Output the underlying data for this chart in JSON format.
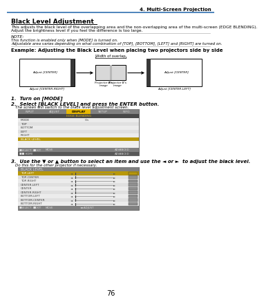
{
  "page_num": "76",
  "chapter": "4. Multi-Screen Projection",
  "title": "Black Level Adjustment",
  "body_line1": "This adjusts the black level of the overlapping area and the non-overlapping area of the multi-screen (EDGE BLENDING).",
  "body_line2": "Adjust the brightness level if you feel the difference is too large.",
  "note_label": "NOTE:",
  "note_line1": "This function is enabled only when [MODE] is turned on.",
  "note_line2": "Adjustable area varies depending on what combination of [TOP], [BOTTOM], [LEFT] and [RIGHT] are turned on.",
  "example_title": "Example: Adjusting the Black Level when placing two projectors side by side",
  "step1": "1.  Turn on [MODE]",
  "step2": "2.  Select [BLACK LEVEL] and press the ENTER button.",
  "step2b": "The screen will switch to the black level adjustment screen.",
  "step3": "3.  Use the ▼ or ▲ button to select an item and use the ◄ or ►  to adjust the black level.",
  "step3b": "Do this for the other projector if necessary.",
  "menu_tabs": [
    "INPUT",
    "ADJUST",
    "DISPLAY",
    "SETUP",
    "INFO."
  ],
  "menu_highlight": "DISPLAY",
  "menu_row2": "EDGE BLENDING",
  "menu_list": [
    "MODE",
    "TOP",
    "BOTTOM",
    "LEFT",
    "RIGHT",
    "BLACK LEVEL"
  ],
  "menu_mode_value": "On",
  "black_level_items": [
    "TOP-LEFT",
    "TOP-CENTER",
    "TOP-RIGHT",
    "CENTER-LEFT",
    "CENTER",
    "CENTER-RIGHT",
    "BOTTOM-LEFT",
    "BOTTOM-CENTER",
    "BOTTOM-RIGHT"
  ],
  "white": "#ffffff",
  "black": "#000000",
  "gray_light": "#e8e8e8",
  "gray_mid": "#a0a0a0",
  "gray_dark": "#606060",
  "yellow_tab": "#e8b800",
  "dark_bar": "#707070",
  "darker_bar": "#555555",
  "menu_item_bg": "#e0e0e0",
  "black_level_highlight": "#b8980a",
  "top_left_highlight": "#b8980a",
  "blue_line": "#3070b0"
}
